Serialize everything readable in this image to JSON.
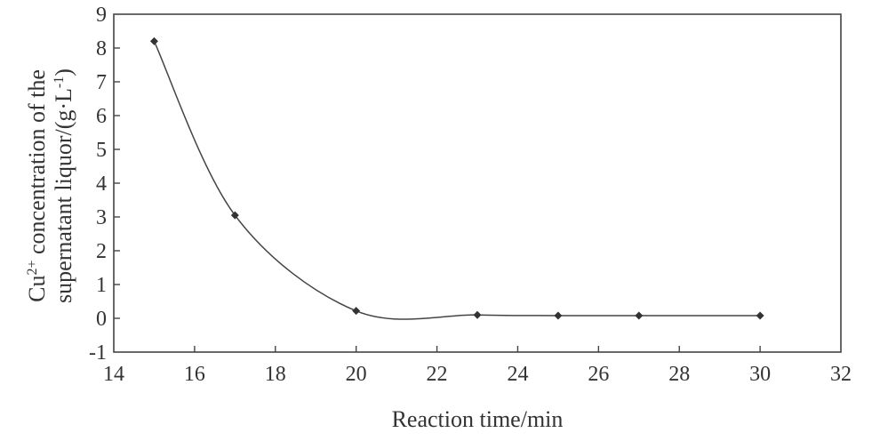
{
  "chart_data": {
    "type": "line",
    "xlabel": "Reaction time/min",
    "ylabel_line1_prefix": "Cu",
    "ylabel_line1_sup": "2+",
    "ylabel_line1_suffix": " concentration of the",
    "ylabel_line2_prefix": "supernatant liquor/(g·L",
    "ylabel_line2_sup": "-1",
    "ylabel_line2_suffix": ")",
    "xlim": [
      14,
      32
    ],
    "ylim": [
      -1,
      9
    ],
    "xticks": [
      14,
      16,
      18,
      20,
      22,
      24,
      26,
      28,
      30,
      32
    ],
    "yticks": [
      -1,
      0,
      1,
      2,
      3,
      4,
      5,
      6,
      7,
      8,
      9
    ],
    "grid": false,
    "series": [
      {
        "x": [
          15,
          17,
          20,
          23,
          25,
          27,
          30
        ],
        "y": [
          8.2,
          3.05,
          0.22,
          0.1,
          0.08,
          0.08,
          0.08
        ]
      }
    ]
  }
}
